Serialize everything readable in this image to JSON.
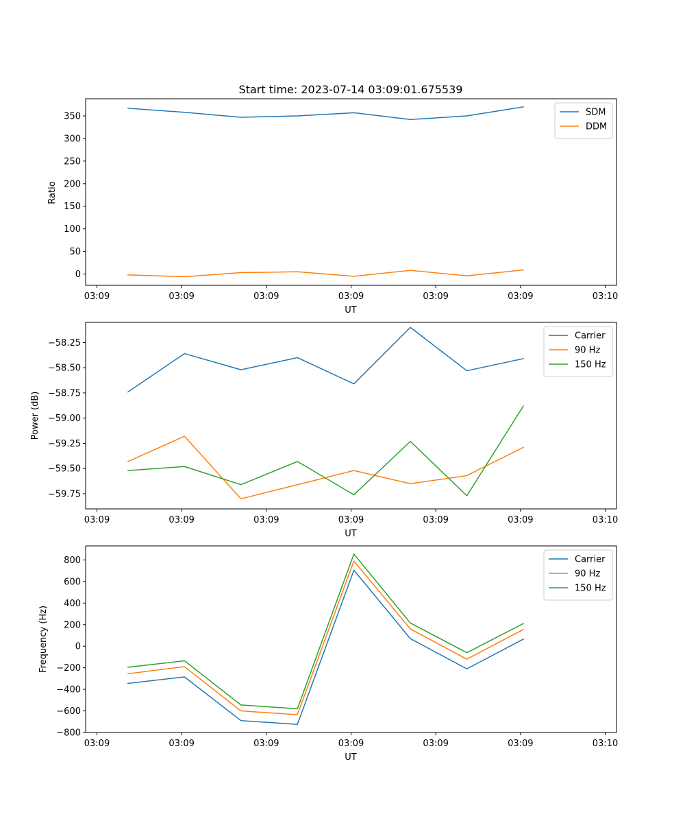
{
  "chart_data": [
    {
      "type": "line",
      "title": "Start time: 2023-07-14 03:09:01.675539",
      "xlabel": "UT",
      "ylabel": "Ratio",
      "xlim": [
        -0.2,
        9.2
      ],
      "ylim": [
        -25,
        388
      ],
      "x": [
        0.55,
        1.55,
        2.55,
        3.55,
        4.55,
        5.55,
        6.55,
        7.55
      ],
      "x_ticks": [
        0,
        1.5,
        3,
        4.5,
        6,
        7.5,
        9
      ],
      "x_tick_labels": [
        "03:09",
        "03:09",
        "03:09",
        "03:09",
        "03:09",
        "03:09",
        "03:10"
      ],
      "y_ticks": [
        0,
        50,
        100,
        150,
        200,
        250,
        300,
        350
      ],
      "y_tick_labels": [
        "0",
        "50",
        "100",
        "150",
        "200",
        "250",
        "300",
        "350"
      ],
      "legend_position": "top-right",
      "series": [
        {
          "name": "SDM",
          "color": "#1f77b4",
          "values": [
            367,
            358,
            347,
            350,
            357,
            342,
            350,
            370
          ]
        },
        {
          "name": "DDM",
          "color": "#ff7f0e",
          "values": [
            -2,
            -6,
            3,
            5,
            -5,
            8,
            -4,
            9
          ]
        }
      ]
    },
    {
      "type": "line",
      "title": "",
      "xlabel": "UT",
      "ylabel": "Power (dB)",
      "xlim": [
        -0.2,
        9.2
      ],
      "ylim": [
        -59.9,
        -58.05
      ],
      "x": [
        0.55,
        1.55,
        2.55,
        3.55,
        4.55,
        5.55,
        6.55,
        7.55
      ],
      "x_ticks": [
        0,
        1.5,
        3,
        4.5,
        6,
        7.5,
        9
      ],
      "x_tick_labels": [
        "03:09",
        "03:09",
        "03:09",
        "03:09",
        "03:09",
        "03:09",
        "03:10"
      ],
      "y_ticks": [
        -59.75,
        -59.5,
        -59.25,
        -59.0,
        -58.75,
        -58.5,
        -58.25
      ],
      "y_tick_labels": [
        "−59.75",
        "−59.50",
        "−59.25",
        "−59.00",
        "−58.75",
        "−58.50",
        "−58.25"
      ],
      "legend_position": "top-right",
      "series": [
        {
          "name": "Carrier",
          "color": "#1f77b4",
          "values": [
            -58.74,
            -58.36,
            -58.52,
            -58.4,
            -58.66,
            -58.1,
            -58.53,
            -58.41
          ]
        },
        {
          "name": "90 Hz",
          "color": "#ff7f0e",
          "values": [
            -59.43,
            -59.18,
            -59.8,
            -59.66,
            -59.52,
            -59.65,
            -59.57,
            -59.29
          ]
        },
        {
          "name": "150 Hz",
          "color": "#2ca02c",
          "values": [
            -59.52,
            -59.48,
            -59.66,
            -59.43,
            -59.76,
            -59.23,
            -59.77,
            -58.88
          ]
        }
      ]
    },
    {
      "type": "line",
      "title": "",
      "xlabel": "UT",
      "ylabel": "Frequency (Hz)",
      "xlim": [
        -0.2,
        9.2
      ],
      "ylim": [
        -800,
        930
      ],
      "x": [
        0.55,
        1.55,
        2.55,
        3.55,
        4.55,
        5.55,
        6.55,
        7.55
      ],
      "x_ticks": [
        0,
        1.5,
        3,
        4.5,
        6,
        7.5,
        9
      ],
      "x_tick_labels": [
        "03:09",
        "03:09",
        "03:09",
        "03:09",
        "03:09",
        "03:09",
        "03:10"
      ],
      "y_ticks": [
        -800,
        -600,
        -400,
        -200,
        0,
        200,
        400,
        600,
        800
      ],
      "y_tick_labels": [
        "−800",
        "−600",
        "−400",
        "−200",
        "0",
        "200",
        "400",
        "600",
        "800"
      ],
      "legend_position": "top-right",
      "series": [
        {
          "name": "Carrier",
          "color": "#1f77b4",
          "values": [
            -345,
            -285,
            -690,
            -725,
            705,
            70,
            -210,
            65
          ]
        },
        {
          "name": "90 Hz",
          "color": "#ff7f0e",
          "values": [
            -255,
            -190,
            -600,
            -635,
            790,
            160,
            -120,
            155
          ]
        },
        {
          "name": "150 Hz",
          "color": "#2ca02c",
          "values": [
            -195,
            -135,
            -545,
            -580,
            855,
            215,
            -60,
            210
          ]
        }
      ]
    }
  ]
}
